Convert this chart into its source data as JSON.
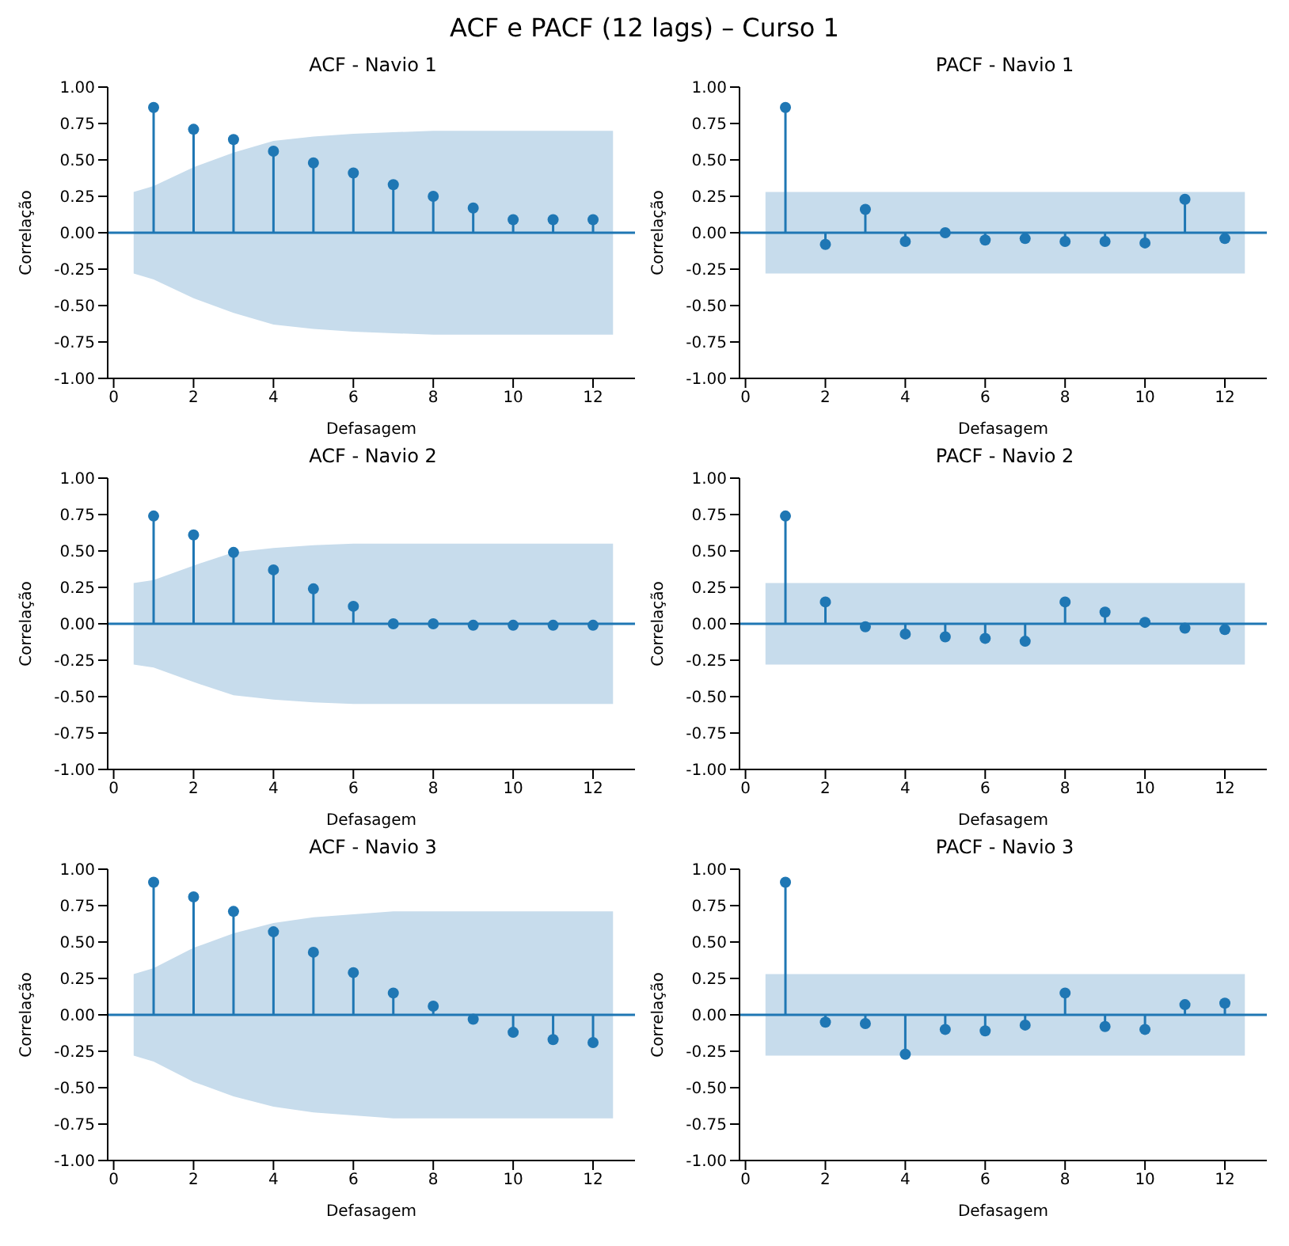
{
  "chart_data": [
    {
      "type": "lollipop",
      "title": "ACF - Navio 1",
      "xlabel": "Defasagem",
      "ylabel": "Correlação",
      "x": [
        1,
        2,
        3,
        4,
        5,
        6,
        7,
        8,
        9,
        10,
        11,
        12
      ],
      "xlim": [
        -0.15,
        13.05
      ],
      "xticks": [
        0,
        2,
        4,
        6,
        8,
        10,
        12
      ],
      "ylim": [
        -1,
        1
      ],
      "yticks": [
        {
          "value": -1,
          "label": "-1.00"
        },
        {
          "value": -0.75,
          "label": "-0.75"
        },
        {
          "value": -0.5,
          "label": "-0.50"
        },
        {
          "value": -0.25,
          "label": "-0.25"
        },
        {
          "value": 0,
          "label": "0.00"
        },
        {
          "value": 0.25,
          "label": "0.25"
        },
        {
          "value": 0.5,
          "label": "0.50"
        },
        {
          "value": 0.75,
          "label": "0.75"
        },
        {
          "value": 1,
          "label": "1.00"
        }
      ],
      "grid": false,
      "legend": false,
      "annotations": [
        "ACF e PACF (12 lags) – Curso 1"
      ],
      "ref_lines": [
        {
          "axis": "y",
          "value": 0,
          "color": "#1f77b4"
        }
      ],
      "series": [
        {
          "color": "#1f77b4",
          "marker": "circle",
          "values": [
            0.86,
            0.71,
            0.64,
            0.56,
            0.48,
            0.41,
            0.33,
            0.25,
            0.17,
            0.09,
            0.09,
            0.09
          ]
        },
        {
          "type": "area",
          "color": "#c7dcec",
          "x": [
            0.5,
            1,
            2,
            3,
            4,
            5,
            6,
            7,
            8,
            9,
            10,
            11,
            12,
            12.5
          ],
          "values": [
            0.28,
            0.32,
            0.45,
            0.55,
            0.63,
            0.66,
            0.68,
            0.69,
            0.7,
            0.7,
            0.7,
            0.7,
            0.7,
            0.7
          ]
        },
        {
          "type": "area",
          "color": "#c7dcec",
          "x": [
            0.5,
            1,
            2,
            3,
            4,
            5,
            6,
            7,
            8,
            9,
            10,
            11,
            12,
            12.5
          ],
          "values": [
            -0.28,
            -0.32,
            -0.45,
            -0.55,
            -0.63,
            -0.66,
            -0.68,
            -0.69,
            -0.7,
            -0.7,
            -0.7,
            -0.7,
            -0.7,
            -0.7
          ]
        }
      ]
    },
    {
      "type": "lollipop",
      "title": "PACF - Navio 1",
      "xlabel": "Defasagem",
      "ylabel": "Correlação",
      "x": [
        1,
        2,
        3,
        4,
        5,
        6,
        7,
        8,
        9,
        10,
        11,
        12
      ],
      "xlim": [
        -0.15,
        13.05
      ],
      "xticks": [
        0,
        2,
        4,
        6,
        8,
        10,
        12
      ],
      "ylim": [
        -1,
        1
      ],
      "yticks": [
        {
          "value": -1,
          "label": "-1.00"
        },
        {
          "value": -0.75,
          "label": "-0.75"
        },
        {
          "value": -0.5,
          "label": "-0.50"
        },
        {
          "value": -0.25,
          "label": "-0.25"
        },
        {
          "value": 0,
          "label": "0.00"
        },
        {
          "value": 0.25,
          "label": "0.25"
        },
        {
          "value": 0.5,
          "label": "0.50"
        },
        {
          "value": 0.75,
          "label": "0.75"
        },
        {
          "value": 1,
          "label": "1.00"
        }
      ],
      "grid": false,
      "legend": false,
      "ref_lines": [
        {
          "axis": "y",
          "value": 0,
          "color": "#1f77b4"
        }
      ],
      "series": [
        {
          "color": "#1f77b4",
          "marker": "circle",
          "values": [
            0.86,
            -0.08,
            0.16,
            -0.06,
            0.0,
            -0.05,
            -0.04,
            -0.06,
            -0.06,
            -0.07,
            0.23,
            -0.04
          ]
        },
        {
          "type": "area",
          "color": "#c7dcec",
          "x": [
            0.5,
            12.5
          ],
          "values": [
            0.28,
            0.28
          ]
        },
        {
          "type": "area",
          "color": "#c7dcec",
          "x": [
            0.5,
            12.5
          ],
          "values": [
            -0.28,
            -0.28
          ]
        }
      ]
    },
    {
      "type": "lollipop",
      "title": "ACF - Navio 2",
      "xlabel": "Defasagem",
      "ylabel": "Correlação",
      "x": [
        1,
        2,
        3,
        4,
        5,
        6,
        7,
        8,
        9,
        10,
        11,
        12
      ],
      "xlim": [
        -0.15,
        13.05
      ],
      "xticks": [
        0,
        2,
        4,
        6,
        8,
        10,
        12
      ],
      "ylim": [
        -1,
        1
      ],
      "yticks": [
        {
          "value": -1,
          "label": "-1.00"
        },
        {
          "value": -0.75,
          "label": "-0.75"
        },
        {
          "value": -0.5,
          "label": "-0.50"
        },
        {
          "value": -0.25,
          "label": "-0.25"
        },
        {
          "value": 0,
          "label": "0.00"
        },
        {
          "value": 0.25,
          "label": "0.25"
        },
        {
          "value": 0.5,
          "label": "0.50"
        },
        {
          "value": 0.75,
          "label": "0.75"
        },
        {
          "value": 1,
          "label": "1.00"
        }
      ],
      "grid": false,
      "legend": false,
      "ref_lines": [
        {
          "axis": "y",
          "value": 0,
          "color": "#1f77b4"
        }
      ],
      "series": [
        {
          "color": "#1f77b4",
          "marker": "circle",
          "values": [
            0.74,
            0.61,
            0.49,
            0.37,
            0.24,
            0.12,
            0.0,
            0.0,
            -0.01,
            -0.01,
            -0.01,
            -0.01
          ]
        },
        {
          "type": "area",
          "color": "#c7dcec",
          "x": [
            0.5,
            1,
            2,
            3,
            4,
            5,
            6,
            7,
            8,
            9,
            10,
            11,
            12,
            12.5
          ],
          "values": [
            0.28,
            0.3,
            0.4,
            0.49,
            0.52,
            0.54,
            0.55,
            0.55,
            0.55,
            0.55,
            0.55,
            0.55,
            0.55,
            0.55
          ]
        },
        {
          "type": "area",
          "color": "#c7dcec",
          "x": [
            0.5,
            1,
            2,
            3,
            4,
            5,
            6,
            7,
            8,
            9,
            10,
            11,
            12,
            12.5
          ],
          "values": [
            -0.28,
            -0.3,
            -0.4,
            -0.49,
            -0.52,
            -0.54,
            -0.55,
            -0.55,
            -0.55,
            -0.55,
            -0.55,
            -0.55,
            -0.55,
            -0.55
          ]
        }
      ]
    },
    {
      "type": "lollipop",
      "title": "PACF - Navio 2",
      "xlabel": "Defasagem",
      "ylabel": "Correlação",
      "x": [
        1,
        2,
        3,
        4,
        5,
        6,
        7,
        8,
        9,
        10,
        11,
        12
      ],
      "xlim": [
        -0.15,
        13.05
      ],
      "xticks": [
        0,
        2,
        4,
        6,
        8,
        10,
        12
      ],
      "ylim": [
        -1,
        1
      ],
      "yticks": [
        {
          "value": -1,
          "label": "-1.00"
        },
        {
          "value": -0.75,
          "label": "-0.75"
        },
        {
          "value": -0.5,
          "label": "-0.50"
        },
        {
          "value": -0.25,
          "label": "-0.25"
        },
        {
          "value": 0,
          "label": "0.00"
        },
        {
          "value": 0.25,
          "label": "0.25"
        },
        {
          "value": 0.5,
          "label": "0.50"
        },
        {
          "value": 0.75,
          "label": "0.75"
        },
        {
          "value": 1,
          "label": "1.00"
        }
      ],
      "grid": false,
      "legend": false,
      "ref_lines": [
        {
          "axis": "y",
          "value": 0,
          "color": "#1f77b4"
        }
      ],
      "series": [
        {
          "color": "#1f77b4",
          "marker": "circle",
          "values": [
            0.74,
            0.15,
            -0.02,
            -0.07,
            -0.09,
            -0.1,
            -0.12,
            0.15,
            0.08,
            0.01,
            -0.03,
            -0.04
          ]
        },
        {
          "type": "area",
          "color": "#c7dcec",
          "x": [
            0.5,
            12.5
          ],
          "values": [
            0.28,
            0.28
          ]
        },
        {
          "type": "area",
          "color": "#c7dcec",
          "x": [
            0.5,
            12.5
          ],
          "values": [
            -0.28,
            -0.28
          ]
        }
      ]
    },
    {
      "type": "lollipop",
      "title": "ACF - Navio 3",
      "xlabel": "Defasagem",
      "ylabel": "Correlação",
      "x": [
        1,
        2,
        3,
        4,
        5,
        6,
        7,
        8,
        9,
        10,
        11,
        12
      ],
      "xlim": [
        -0.15,
        13.05
      ],
      "xticks": [
        0,
        2,
        4,
        6,
        8,
        10,
        12
      ],
      "ylim": [
        -1,
        1
      ],
      "yticks": [
        {
          "value": -1,
          "label": "-1.00"
        },
        {
          "value": -0.75,
          "label": "-0.75"
        },
        {
          "value": -0.5,
          "label": "-0.50"
        },
        {
          "value": -0.25,
          "label": "-0.25"
        },
        {
          "value": 0,
          "label": "0.00"
        },
        {
          "value": 0.25,
          "label": "0.25"
        },
        {
          "value": 0.5,
          "label": "0.50"
        },
        {
          "value": 0.75,
          "label": "0.75"
        },
        {
          "value": 1,
          "label": "1.00"
        }
      ],
      "grid": false,
      "legend": false,
      "ref_lines": [
        {
          "axis": "y",
          "value": 0,
          "color": "#1f77b4"
        }
      ],
      "series": [
        {
          "color": "#1f77b4",
          "marker": "circle",
          "values": [
            0.91,
            0.81,
            0.71,
            0.57,
            0.43,
            0.29,
            0.15,
            0.06,
            -0.03,
            -0.12,
            -0.17,
            -0.19
          ]
        },
        {
          "type": "area",
          "color": "#c7dcec",
          "x": [
            0.5,
            1,
            2,
            3,
            4,
            5,
            6,
            7,
            8,
            9,
            10,
            11,
            12,
            12.5
          ],
          "values": [
            0.28,
            0.32,
            0.46,
            0.56,
            0.63,
            0.67,
            0.69,
            0.71,
            0.71,
            0.71,
            0.71,
            0.71,
            0.71,
            0.71
          ]
        },
        {
          "type": "area",
          "color": "#c7dcec",
          "x": [
            0.5,
            1,
            2,
            3,
            4,
            5,
            6,
            7,
            8,
            9,
            10,
            11,
            12,
            12.5
          ],
          "values": [
            -0.28,
            -0.32,
            -0.46,
            -0.56,
            -0.63,
            -0.67,
            -0.69,
            -0.71,
            -0.71,
            -0.71,
            -0.71,
            -0.71,
            -0.71,
            -0.71
          ]
        }
      ]
    },
    {
      "type": "lollipop",
      "title": "PACF - Navio 3",
      "xlabel": "Defasagem",
      "ylabel": "Correlação",
      "x": [
        1,
        2,
        3,
        4,
        5,
        6,
        7,
        8,
        9,
        10,
        11,
        12
      ],
      "xlim": [
        -0.15,
        13.05
      ],
      "xticks": [
        0,
        2,
        4,
        6,
        8,
        10,
        12
      ],
      "ylim": [
        -1,
        1
      ],
      "yticks": [
        {
          "value": -1,
          "label": "-1.00"
        },
        {
          "value": -0.75,
          "label": "-0.75"
        },
        {
          "value": -0.5,
          "label": "-0.50"
        },
        {
          "value": -0.25,
          "label": "-0.25"
        },
        {
          "value": 0,
          "label": "0.00"
        },
        {
          "value": 0.25,
          "label": "0.25"
        },
        {
          "value": 0.5,
          "label": "0.50"
        },
        {
          "value": 0.75,
          "label": "0.75"
        },
        {
          "value": 1,
          "label": "1.00"
        }
      ],
      "grid": false,
      "legend": false,
      "ref_lines": [
        {
          "axis": "y",
          "value": 0,
          "color": "#1f77b4"
        }
      ],
      "series": [
        {
          "color": "#1f77b4",
          "marker": "circle",
          "values": [
            0.91,
            -0.05,
            -0.06,
            -0.27,
            -0.1,
            -0.11,
            -0.07,
            0.15,
            -0.08,
            -0.1,
            0.07,
            0.08
          ]
        },
        {
          "type": "area",
          "color": "#c7dcec",
          "x": [
            0.5,
            12.5
          ],
          "values": [
            0.28,
            0.28
          ]
        },
        {
          "type": "area",
          "color": "#c7dcec",
          "x": [
            0.5,
            12.5
          ],
          "values": [
            -0.28,
            -0.28
          ]
        }
      ]
    }
  ]
}
